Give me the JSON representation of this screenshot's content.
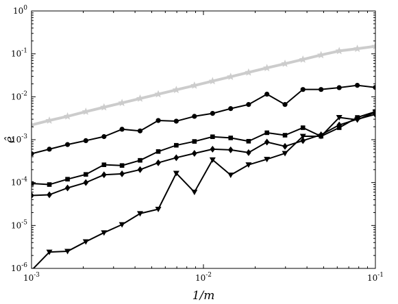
{
  "chart_data": {
    "type": "line",
    "xscale": "log",
    "yscale": "log",
    "xlim": [
      0.001,
      0.1
    ],
    "ylim": [
      1e-06,
      1
    ],
    "xlabel": "1/m",
    "ylabel": "ê",
    "grid": false,
    "x_ticks": [
      {
        "value": 0.001,
        "mantissa": "10",
        "exp": "-3"
      },
      {
        "value": 0.01,
        "mantissa": "10",
        "exp": "-2"
      },
      {
        "value": 0.1,
        "mantissa": "10",
        "exp": "-1"
      }
    ],
    "y_ticks": [
      {
        "value": 1e-06,
        "mantissa": "10",
        "exp": "-6"
      },
      {
        "value": 1e-05,
        "mantissa": "10",
        "exp": "-5"
      },
      {
        "value": 0.0001,
        "mantissa": "10",
        "exp": "-4"
      },
      {
        "value": 0.001,
        "mantissa": "10",
        "exp": "-3"
      },
      {
        "value": 0.01,
        "mantissa": "10",
        "exp": "-2"
      },
      {
        "value": 0.1,
        "mantissa": "10",
        "exp": "-1"
      },
      {
        "value": 1,
        "mantissa": "10",
        "exp": "0"
      }
    ],
    "x": [
      0.001,
      0.00127,
      0.00162,
      0.00207,
      0.00264,
      0.00336,
      0.00428,
      0.00546,
      0.00695,
      0.00886,
      0.0113,
      0.0144,
      0.0183,
      0.0234,
      0.0298,
      0.0379,
      0.0483,
      0.0616,
      0.0785,
      0.1
    ],
    "series": [
      {
        "marker": "star",
        "color": "#cccccc",
        "values": [
          0.0022,
          0.0028,
          0.0035,
          0.0045,
          0.0057,
          0.0072,
          0.0091,
          0.0115,
          0.0145,
          0.0183,
          0.0232,
          0.0293,
          0.037,
          0.047,
          0.059,
          0.074,
          0.094,
          0.117,
          0.132,
          0.15
        ]
      },
      {
        "marker": "circle",
        "color": "#000000",
        "values": [
          0.00047,
          0.0006,
          0.00077,
          0.00095,
          0.00118,
          0.00175,
          0.0016,
          0.0028,
          0.0027,
          0.0035,
          0.0041,
          0.0053,
          0.0066,
          0.0115,
          0.0066,
          0.0148,
          0.0148,
          0.0163,
          0.0185,
          0.0165
        ]
      },
      {
        "marker": "square",
        "color": "#000000",
        "values": [
          9.5e-05,
          9e-05,
          0.00012,
          0.000155,
          0.00026,
          0.00025,
          0.00033,
          0.00053,
          0.00074,
          0.00091,
          0.00117,
          0.0011,
          0.00092,
          0.00145,
          0.00127,
          0.0019,
          0.0012,
          0.0019,
          0.0033,
          0.0045
        ]
      },
      {
        "marker": "diamond",
        "color": "#000000",
        "values": [
          5e-05,
          5.2e-05,
          7.5e-05,
          0.0001,
          0.000152,
          0.00016,
          0.0002,
          0.00029,
          0.00038,
          0.00048,
          0.0006,
          0.00058,
          0.0005,
          0.00088,
          0.0007,
          0.00095,
          0.0013,
          0.0022,
          0.003,
          0.0039
        ]
      },
      {
        "marker": "triangle-down",
        "color": "#000000",
        "values": [
          9e-07,
          2.4e-06,
          2.5e-06,
          4.2e-06,
          6.8e-06,
          1.05e-05,
          1.9e-05,
          2.4e-05,
          0.000165,
          6e-05,
          0.00034,
          0.00015,
          0.00026,
          0.00035,
          0.00048,
          0.0012,
          0.0012,
          0.0033,
          0.0029,
          0.0044
        ]
      }
    ]
  }
}
